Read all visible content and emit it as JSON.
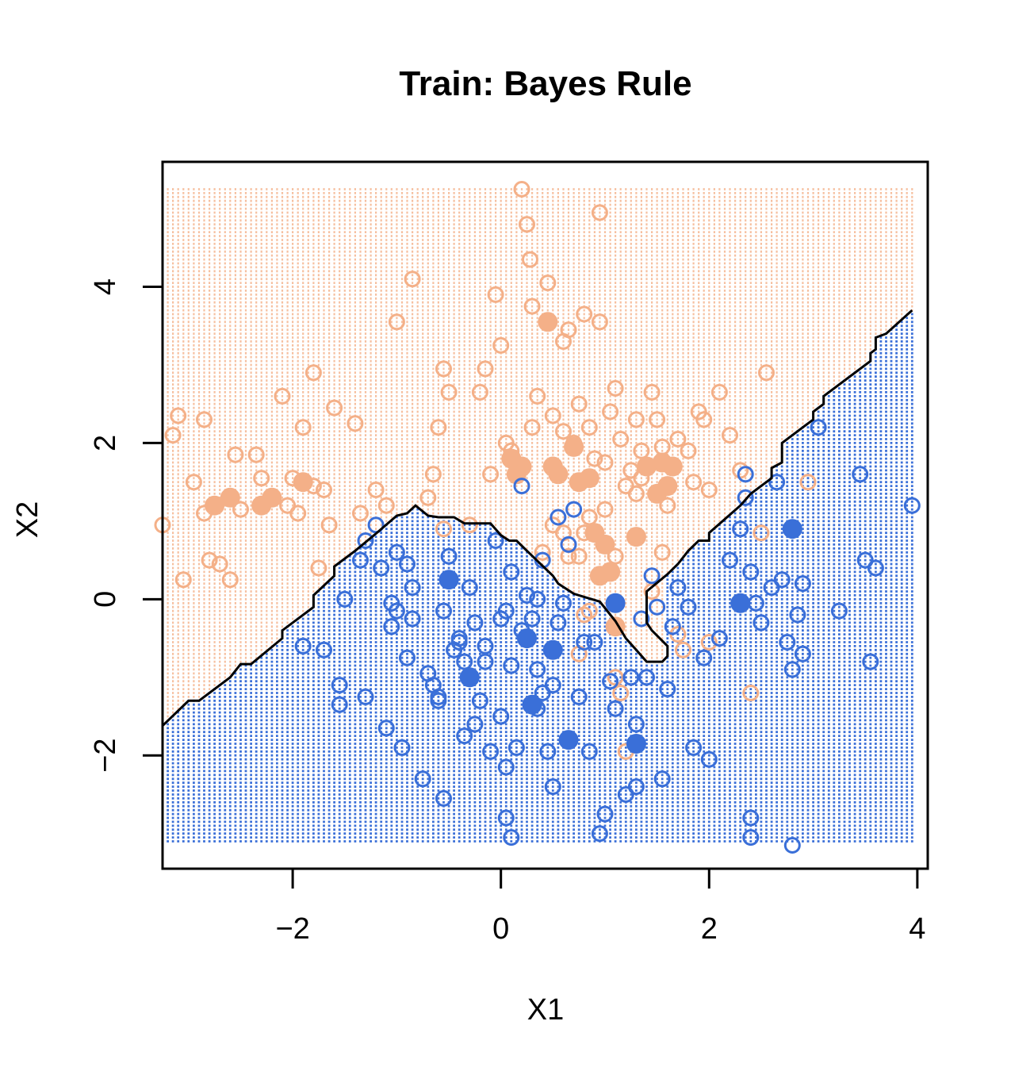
{
  "chart_data": {
    "type": "scatter",
    "title": "Train: Bayes Rule",
    "xlabel": "X1",
    "ylabel": "X2",
    "xlim": [
      -3.25,
      4.1
    ],
    "ylim": [
      -3.45,
      5.6
    ],
    "x_ticks": [
      -2,
      0,
      2,
      4
    ],
    "y_ticks": [
      -2,
      0,
      2,
      4
    ],
    "x_tick_labels": [
      "−2",
      "0",
      "2",
      "4"
    ],
    "y_tick_labels": [
      "−2",
      "0",
      "2",
      "4"
    ],
    "grid_range": {
      "x": [
        -3.25,
        3.95
      ],
      "y": [
        -3.1,
        5.25
      ],
      "step": 0.05
    },
    "colors": {
      "orange": "#f4b088",
      "blue": "#3a6fd8",
      "boundary": "#000000"
    },
    "decision_boundary": [
      [
        -3.25,
        -1.62
      ],
      [
        -3.0,
        -1.3
      ],
      [
        -2.9,
        -1.3
      ],
      [
        -2.6,
        -1.0
      ],
      [
        -2.5,
        -0.83
      ],
      [
        -2.4,
        -0.83
      ],
      [
        -2.1,
        -0.5
      ],
      [
        -2.1,
        -0.4
      ],
      [
        -1.8,
        -0.1
      ],
      [
        -1.8,
        0.05
      ],
      [
        -1.6,
        0.3
      ],
      [
        -1.6,
        0.42
      ],
      [
        -1.4,
        0.62
      ],
      [
        -1.2,
        0.84
      ],
      [
        -1.0,
        1.07
      ],
      [
        -0.9,
        1.1
      ],
      [
        -0.82,
        1.2
      ],
      [
        -0.7,
        1.07
      ],
      [
        -0.6,
        1.05
      ],
      [
        -0.45,
        1.05
      ],
      [
        -0.35,
        0.97
      ],
      [
        -0.2,
        0.97
      ],
      [
        -0.1,
        0.97
      ],
      [
        0.0,
        0.82
      ],
      [
        0.08,
        0.75
      ],
      [
        0.15,
        0.75
      ],
      [
        0.25,
        0.62
      ],
      [
        0.5,
        0.3
      ],
      [
        0.55,
        0.2
      ],
      [
        0.7,
        0.07
      ],
      [
        0.8,
        0.03
      ],
      [
        0.95,
        -0.03
      ],
      [
        1.1,
        -0.28
      ],
      [
        1.2,
        -0.5
      ],
      [
        1.3,
        -0.65
      ],
      [
        1.4,
        -0.8
      ],
      [
        1.55,
        -0.8
      ],
      [
        1.6,
        -0.73
      ],
      [
        1.6,
        -0.6
      ],
      [
        1.45,
        -0.4
      ],
      [
        1.4,
        -0.3
      ],
      [
        1.4,
        0.1
      ],
      [
        1.6,
        0.32
      ],
      [
        1.7,
        0.45
      ],
      [
        1.8,
        0.62
      ],
      [
        1.9,
        0.75
      ],
      [
        2.0,
        0.75
      ],
      [
        2.0,
        0.85
      ],
      [
        2.3,
        1.2
      ],
      [
        2.4,
        1.35
      ],
      [
        2.5,
        1.45
      ],
      [
        2.6,
        1.55
      ],
      [
        2.6,
        1.68
      ],
      [
        2.7,
        1.75
      ],
      [
        2.7,
        2.0
      ],
      [
        2.9,
        2.2
      ],
      [
        3.0,
        2.3
      ],
      [
        3.0,
        2.4
      ],
      [
        3.1,
        2.5
      ],
      [
        3.1,
        2.6
      ],
      [
        3.55,
        3.05
      ],
      [
        3.55,
        3.15
      ],
      [
        3.6,
        3.2
      ],
      [
        3.6,
        3.35
      ],
      [
        3.7,
        3.4
      ],
      [
        3.95,
        3.7
      ]
    ],
    "series": [
      {
        "name": "",
        "color": "#f4b088",
        "filled": [
          [
            0.2,
            1.7
          ],
          [
            0.15,
            1.6
          ],
          [
            0.1,
            1.8
          ],
          [
            0.5,
            1.7
          ],
          [
            0.55,
            1.6
          ],
          [
            0.7,
            1.95
          ],
          [
            0.75,
            1.5
          ],
          [
            0.85,
            1.55
          ],
          [
            1.4,
            1.7
          ],
          [
            1.55,
            1.75
          ],
          [
            1.65,
            1.7
          ],
          [
            1.5,
            1.35
          ],
          [
            1.6,
            1.45
          ],
          [
            0.9,
            0.85
          ],
          [
            1.0,
            0.7
          ],
          [
            1.05,
            0.35
          ],
          [
            0.95,
            0.3
          ],
          [
            1.1,
            -0.35
          ],
          [
            -1.9,
            1.5
          ],
          [
            -2.2,
            1.3
          ],
          [
            -2.3,
            1.2
          ],
          [
            -2.6,
            1.3
          ],
          [
            -2.75,
            1.2
          ],
          [
            0.45,
            3.55
          ],
          [
            1.3,
            0.8
          ]
        ],
        "open": [
          [
            -3.25,
            0.95
          ],
          [
            -3.15,
            2.1
          ],
          [
            -3.1,
            2.35
          ],
          [
            -3.05,
            0.25
          ],
          [
            -2.95,
            1.5
          ],
          [
            -2.85,
            2.3
          ],
          [
            -2.85,
            1.1
          ],
          [
            -2.8,
            0.5
          ],
          [
            -2.7,
            0.45
          ],
          [
            -2.6,
            0.25
          ],
          [
            -2.55,
            1.85
          ],
          [
            -2.5,
            1.15
          ],
          [
            -2.35,
            1.85
          ],
          [
            -2.3,
            1.55
          ],
          [
            -2.1,
            2.6
          ],
          [
            -2.05,
            1.2
          ],
          [
            -2.0,
            1.55
          ],
          [
            -1.95,
            1.1
          ],
          [
            -1.9,
            2.2
          ],
          [
            -1.8,
            1.45
          ],
          [
            -1.8,
            2.9
          ],
          [
            -1.75,
            0.4
          ],
          [
            -1.7,
            1.4
          ],
          [
            -1.65,
            0.95
          ],
          [
            -1.6,
            2.45
          ],
          [
            -1.4,
            2.25
          ],
          [
            -1.35,
            1.1
          ],
          [
            -1.2,
            1.4
          ],
          [
            -1.1,
            1.2
          ],
          [
            -1.0,
            3.55
          ],
          [
            -0.85,
            4.1
          ],
          [
            -0.7,
            1.3
          ],
          [
            -0.65,
            1.6
          ],
          [
            -0.6,
            2.2
          ],
          [
            -0.55,
            2.95
          ],
          [
            -0.5,
            2.65
          ],
          [
            -0.55,
            0.9
          ],
          [
            -0.3,
            0.95
          ],
          [
            -0.2,
            2.65
          ],
          [
            -0.15,
            2.95
          ],
          [
            -0.05,
            3.9
          ],
          [
            0.0,
            3.25
          ],
          [
            0.05,
            2.0
          ],
          [
            0.1,
            1.9
          ],
          [
            -0.1,
            1.6
          ],
          [
            0.2,
            5.25
          ],
          [
            0.25,
            4.8
          ],
          [
            0.28,
            4.35
          ],
          [
            0.3,
            3.75
          ],
          [
            0.45,
            4.05
          ],
          [
            0.6,
            3.3
          ],
          [
            0.65,
            3.45
          ],
          [
            0.8,
            3.65
          ],
          [
            0.95,
            3.55
          ],
          [
            0.95,
            4.95
          ],
          [
            0.3,
            2.2
          ],
          [
            0.35,
            2.6
          ],
          [
            0.5,
            2.35
          ],
          [
            0.6,
            2.15
          ],
          [
            0.7,
            2.0
          ],
          [
            0.75,
            2.5
          ],
          [
            0.85,
            2.2
          ],
          [
            0.9,
            1.8
          ],
          [
            1.0,
            1.75
          ],
          [
            1.05,
            2.4
          ],
          [
            1.1,
            2.7
          ],
          [
            1.15,
            2.05
          ],
          [
            1.2,
            1.45
          ],
          [
            1.25,
            1.65
          ],
          [
            1.3,
            2.3
          ],
          [
            1.35,
            1.9
          ],
          [
            1.45,
            2.65
          ],
          [
            1.5,
            2.3
          ],
          [
            1.55,
            1.95
          ],
          [
            1.6,
            1.2
          ],
          [
            1.7,
            2.05
          ],
          [
            1.8,
            1.9
          ],
          [
            1.85,
            1.5
          ],
          [
            1.9,
            2.4
          ],
          [
            1.95,
            2.3
          ],
          [
            2.0,
            1.4
          ],
          [
            2.1,
            2.65
          ],
          [
            2.2,
            2.1
          ],
          [
            2.3,
            1.65
          ],
          [
            2.55,
            2.9
          ],
          [
            0.4,
            0.6
          ],
          [
            0.5,
            0.95
          ],
          [
            0.6,
            0.85
          ],
          [
            0.65,
            0.55
          ],
          [
            0.75,
            0.55
          ],
          [
            0.8,
            0.85
          ],
          [
            0.85,
            1.05
          ],
          [
            0.85,
            -0.15
          ],
          [
            0.8,
            -0.2
          ],
          [
            0.75,
            -0.7
          ],
          [
            1.1,
            -1.0
          ],
          [
            1.15,
            -1.2
          ],
          [
            1.2,
            -1.95
          ],
          [
            1.45,
            0.1
          ],
          [
            1.55,
            0.6
          ],
          [
            1.7,
            -0.45
          ],
          [
            1.75,
            -0.65
          ],
          [
            2.0,
            -0.55
          ],
          [
            2.4,
            -1.2
          ],
          [
            2.5,
            0.85
          ],
          [
            2.95,
            1.5
          ],
          [
            1.1,
            0.55
          ],
          [
            1.0,
            1.15
          ],
          [
            1.3,
            1.35
          ],
          [
            1.35,
            1.55
          ]
        ]
      },
      {
        "name": "",
        "color": "#3a6fd8",
        "filled": [
          [
            -0.5,
            0.25
          ],
          [
            -0.3,
            -1.0
          ],
          [
            0.25,
            -0.5
          ],
          [
            0.5,
            -0.65
          ],
          [
            0.3,
            -1.35
          ],
          [
            0.65,
            -1.8
          ],
          [
            1.3,
            -1.85
          ],
          [
            1.1,
            -0.05
          ],
          [
            2.3,
            -0.05
          ],
          [
            2.8,
            0.9
          ]
        ],
        "open": [
          [
            -1.9,
            -0.6
          ],
          [
            -1.7,
            -0.65
          ],
          [
            -1.55,
            -1.1
          ],
          [
            -1.55,
            -1.35
          ],
          [
            -1.5,
            0.0
          ],
          [
            -1.3,
            -1.25
          ],
          [
            -1.35,
            0.5
          ],
          [
            -1.3,
            0.75
          ],
          [
            -1.2,
            0.95
          ],
          [
            -1.15,
            0.4
          ],
          [
            -1.1,
            -1.65
          ],
          [
            -1.05,
            -0.05
          ],
          [
            -1.05,
            -0.35
          ],
          [
            -1.0,
            -0.15
          ],
          [
            -1.0,
            0.6
          ],
          [
            -0.95,
            -1.9
          ],
          [
            -0.9,
            -0.75
          ],
          [
            -0.85,
            -0.25
          ],
          [
            -0.85,
            0.15
          ],
          [
            -0.9,
            0.45
          ],
          [
            -0.75,
            -2.3
          ],
          [
            -0.7,
            -0.95
          ],
          [
            -0.65,
            -1.1
          ],
          [
            -0.6,
            -1.3
          ],
          [
            -0.6,
            -1.25
          ],
          [
            -0.55,
            -2.55
          ],
          [
            -0.55,
            -0.15
          ],
          [
            -0.5,
            0.55
          ],
          [
            -0.45,
            -0.65
          ],
          [
            -0.4,
            -0.5
          ],
          [
            -0.35,
            -0.8
          ],
          [
            -0.35,
            -1.75
          ],
          [
            -0.3,
            0.15
          ],
          [
            -0.25,
            -0.3
          ],
          [
            -0.25,
            -1.6
          ],
          [
            -0.2,
            -1.3
          ],
          [
            -0.15,
            -0.6
          ],
          [
            -0.15,
            -0.8
          ],
          [
            -0.1,
            -1.95
          ],
          [
            -0.05,
            0.75
          ],
          [
            0.0,
            -0.25
          ],
          [
            0.0,
            -1.5
          ],
          [
            0.05,
            -0.15
          ],
          [
            0.05,
            -2.15
          ],
          [
            0.1,
            0.35
          ],
          [
            0.1,
            -0.85
          ],
          [
            0.15,
            -1.9
          ],
          [
            0.2,
            -0.4
          ],
          [
            0.2,
            1.45
          ],
          [
            0.25,
            0.05
          ],
          [
            0.3,
            -0.25
          ],
          [
            0.35,
            0.0
          ],
          [
            0.35,
            -0.9
          ],
          [
            0.4,
            -1.2
          ],
          [
            0.4,
            0.5
          ],
          [
            0.45,
            -1.95
          ],
          [
            0.5,
            -1.1
          ],
          [
            0.5,
            -2.4
          ],
          [
            0.55,
            -0.3
          ],
          [
            0.55,
            1.05
          ],
          [
            0.6,
            -0.05
          ],
          [
            0.65,
            0.7
          ],
          [
            0.7,
            1.15
          ],
          [
            0.75,
            -1.25
          ],
          [
            0.8,
            -0.55
          ],
          [
            0.85,
            -1.95
          ],
          [
            0.9,
            -0.55
          ],
          [
            0.95,
            -3.0
          ],
          [
            1.0,
            -2.75
          ],
          [
            1.05,
            -1.05
          ],
          [
            1.1,
            -1.4
          ],
          [
            1.2,
            -2.5
          ],
          [
            1.25,
            -1.0
          ],
          [
            1.3,
            -1.6
          ],
          [
            1.35,
            -0.25
          ],
          [
            1.4,
            -1.0
          ],
          [
            1.45,
            0.3
          ],
          [
            1.5,
            -0.1
          ],
          [
            1.55,
            -2.3
          ],
          [
            1.6,
            -1.15
          ],
          [
            1.65,
            -0.35
          ],
          [
            1.7,
            0.15
          ],
          [
            1.8,
            -0.1
          ],
          [
            1.85,
            -1.9
          ],
          [
            1.95,
            -0.75
          ],
          [
            2.0,
            -2.05
          ],
          [
            2.1,
            -0.5
          ],
          [
            2.2,
            0.5
          ],
          [
            2.3,
            0.9
          ],
          [
            2.35,
            1.3
          ],
          [
            2.4,
            0.35
          ],
          [
            2.45,
            -0.05
          ],
          [
            2.5,
            -0.3
          ],
          [
            2.6,
            0.15
          ],
          [
            2.7,
            0.25
          ],
          [
            2.75,
            -0.55
          ],
          [
            2.8,
            -0.9
          ],
          [
            2.85,
            -0.2
          ],
          [
            2.9,
            0.2
          ],
          [
            2.9,
            -0.7
          ],
          [
            3.05,
            2.2
          ],
          [
            3.25,
            -0.15
          ],
          [
            3.45,
            1.6
          ],
          [
            3.5,
            0.5
          ],
          [
            3.55,
            -0.8
          ],
          [
            3.6,
            0.4
          ],
          [
            3.95,
            1.2
          ],
          [
            2.65,
            1.5
          ],
          [
            2.35,
            1.6
          ],
          [
            2.4,
            -2.8
          ],
          [
            2.4,
            -3.05
          ],
          [
            2.8,
            -3.15
          ],
          [
            0.05,
            -2.8
          ],
          [
            0.1,
            -3.05
          ],
          [
            1.3,
            -2.4
          ],
          [
            0.35,
            -1.4
          ],
          [
            -0.4,
            -0.55
          ]
        ]
      }
    ]
  }
}
